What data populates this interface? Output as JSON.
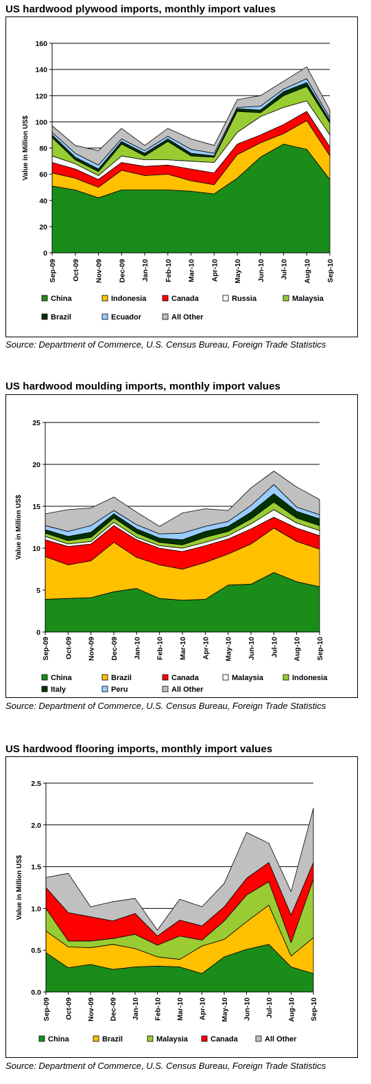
{
  "charts": [
    {
      "title": "US hardwood plywood imports, monthly import values",
      "source": "Source: Department of Commerce, U.S. Census Bureau, Foreign Trade Statistics"
    },
    {
      "title": "US hardwood moulding imports, monthly import values",
      "source": "Source: Department of Commerce, U.S. Census Bureau, Foreign Trade Statistics"
    },
    {
      "title": "US hardwood flooring imports, monthly import values",
      "source": "Source: Department of Commerce, U.S. Census Bureau, Foreign Trade Statistics"
    }
  ],
  "chart_data": [
    {
      "type": "area",
      "stacked": true,
      "title": "US hardwood plywood imports, monthly import values",
      "ylabel": "Value in Million US$",
      "xlabel": "",
      "ylim": [
        0,
        160
      ],
      "yticks": [
        0,
        20,
        40,
        60,
        80,
        100,
        120,
        140,
        160
      ],
      "grid": "horizontal",
      "legend_position": "bottom",
      "categories": [
        "Sep-09",
        "Oct-09",
        "Nov-09",
        "Dec-09",
        "Jan-10",
        "Feb-10",
        "Mar-10",
        "Apr-10",
        "May-10",
        "Jun-10",
        "Jul-10",
        "Aug-10",
        "Sep-10"
      ],
      "series": [
        {
          "name": "China",
          "color": "#1a8c1a",
          "values": [
            51,
            48,
            42,
            48,
            48,
            48,
            47,
            45,
            57,
            73,
            83,
            79,
            56
          ]
        },
        {
          "name": "Indonesia",
          "color": "#ffc000",
          "values": [
            10,
            9,
            8,
            15,
            11,
            12,
            8,
            7,
            18,
            11,
            8,
            22,
            18
          ]
        },
        {
          "name": "Canada",
          "color": "#ff0000",
          "values": [
            8,
            7,
            6,
            6,
            7,
            7,
            9,
            9,
            8,
            6,
            7,
            7,
            7
          ]
        },
        {
          "name": "Russia",
          "color": "#ffffff",
          "values": [
            5,
            4,
            3,
            5,
            5,
            4,
            6,
            8,
            9,
            14,
            13,
            8,
            9
          ]
        },
        {
          "name": "Malaysia",
          "color": "#99cc33",
          "values": [
            14,
            3,
            3,
            9,
            3,
            14,
            4,
            4,
            16,
            3,
            9,
            11,
            9
          ]
        },
        {
          "name": "Brazil",
          "color": "#003300",
          "values": [
            2,
            2,
            2,
            2,
            2,
            2,
            2,
            1,
            2,
            2,
            3,
            3,
            2
          ]
        },
        {
          "name": "Ecuador",
          "color": "#99ccff",
          "values": [
            2,
            3,
            3,
            2,
            2,
            2,
            3,
            2,
            1,
            3,
            2,
            3,
            2
          ]
        },
        {
          "name": "All Other",
          "color": "#c0c0c0",
          "values": [
            5,
            6,
            11,
            8,
            4,
            6,
            8,
            6,
            6,
            8,
            6,
            9,
            6
          ]
        }
      ]
    },
    {
      "type": "area",
      "stacked": true,
      "title": "US hardwood moulding imports, monthly import values",
      "ylabel": "Value in Million US$",
      "xlabel": "",
      "ylim": [
        0,
        25
      ],
      "yticks": [
        0,
        5,
        10,
        15,
        20,
        25
      ],
      "grid": "horizontal",
      "legend_position": "bottom",
      "categories": [
        "Sep-09",
        "Oct-09",
        "Nov-09",
        "Dec-09",
        "Jan-10",
        "Feb-10",
        "Mar-10",
        "Apr-10",
        "May-10",
        "Jun-10",
        "Jul-10",
        "Aug-10",
        "Sep-10"
      ],
      "series": [
        {
          "name": "China",
          "color": "#1a8c1a",
          "values": [
            3.9,
            4.0,
            4.1,
            4.8,
            5.2,
            4.0,
            3.8,
            3.9,
            5.6,
            5.7,
            7.1,
            6.0,
            5.4
          ]
        },
        {
          "name": "Brazil",
          "color": "#ffc000",
          "values": [
            5.1,
            4.0,
            4.4,
            5.9,
            3.7,
            4.0,
            3.7,
            4.4,
            3.7,
            4.8,
            5.3,
            4.8,
            4.5
          ]
        },
        {
          "name": "Canada",
          "color": "#ff0000",
          "values": [
            2.0,
            2.2,
            2.0,
            2.0,
            2.1,
            2.0,
            2.1,
            2.0,
            1.8,
            1.8,
            1.3,
            1.6,
            1.6
          ]
        },
        {
          "name": "Malaysia",
          "color": "#ffffff",
          "values": [
            0.4,
            0.3,
            0.3,
            0.4,
            0.3,
            0.3,
            0.4,
            0.4,
            0.4,
            0.6,
            0.9,
            0.6,
            0.6
          ]
        },
        {
          "name": "Indonesia",
          "color": "#99cc33",
          "values": [
            0.4,
            0.4,
            0.5,
            0.5,
            0.5,
            0.4,
            0.4,
            0.6,
            0.5,
            0.6,
            0.9,
            0.6,
            0.6
          ]
        },
        {
          "name": "Italy",
          "color": "#003300",
          "values": [
            0.4,
            0.5,
            0.6,
            0.5,
            0.5,
            0.5,
            0.6,
            0.7,
            0.6,
            0.8,
            1.0,
            0.8,
            0.8
          ]
        },
        {
          "name": "Peru",
          "color": "#99ccff",
          "values": [
            0.5,
            0.6,
            0.8,
            0.4,
            0.5,
            0.5,
            0.8,
            0.6,
            0.6,
            0.8,
            1.1,
            0.5,
            0.5
          ]
        },
        {
          "name": "All Other",
          "color": "#c0c0c0",
          "values": [
            1.4,
            2.6,
            2.1,
            1.6,
            1.5,
            0.9,
            2.4,
            2.1,
            1.3,
            2.1,
            1.6,
            2.4,
            1.8
          ]
        }
      ]
    },
    {
      "type": "area",
      "stacked": true,
      "title": "US hardwood flooring imports, monthly import values",
      "ylabel": "Value in Million US$",
      "xlabel": "",
      "ylim": [
        0,
        2.5
      ],
      "yticks": [
        "0.0",
        "0.5",
        "1.0",
        "1.5",
        "2.0",
        "2.5"
      ],
      "grid": "horizontal",
      "legend_position": "bottom",
      "categories": [
        "Sep-09",
        "Oct-09",
        "Nov-09",
        "Dec-09",
        "Jan-10",
        "Feb-10",
        "Mar-10",
        "Apr-10",
        "May-10",
        "Jun-10",
        "Jul-10",
        "Aug-10",
        "Sep-10"
      ],
      "series": [
        {
          "name": "China",
          "color": "#1a8c1a",
          "values": [
            0.47,
            0.29,
            0.33,
            0.27,
            0.3,
            0.31,
            0.3,
            0.22,
            0.42,
            0.51,
            0.57,
            0.3,
            0.22
          ]
        },
        {
          "name": "Brazil",
          "color": "#ffc000",
          "values": [
            0.26,
            0.25,
            0.2,
            0.3,
            0.22,
            0.11,
            0.09,
            0.33,
            0.21,
            0.33,
            0.47,
            0.13,
            0.43
          ]
        },
        {
          "name": "Malaysia",
          "color": "#99cc33",
          "values": [
            0.27,
            0.07,
            0.08,
            0.07,
            0.17,
            0.14,
            0.28,
            0.07,
            0.22,
            0.32,
            0.28,
            0.16,
            0.7
          ]
        },
        {
          "name": "Canada",
          "color": "#ff0000",
          "values": [
            0.25,
            0.34,
            0.29,
            0.21,
            0.25,
            0.11,
            0.19,
            0.17,
            0.17,
            0.2,
            0.23,
            0.33,
            0.2
          ]
        },
        {
          "name": "All Other",
          "color": "#c0c0c0",
          "values": [
            0.12,
            0.47,
            0.12,
            0.23,
            0.18,
            0.07,
            0.25,
            0.23,
            0.28,
            0.55,
            0.23,
            0.28,
            0.65
          ]
        }
      ]
    }
  ]
}
